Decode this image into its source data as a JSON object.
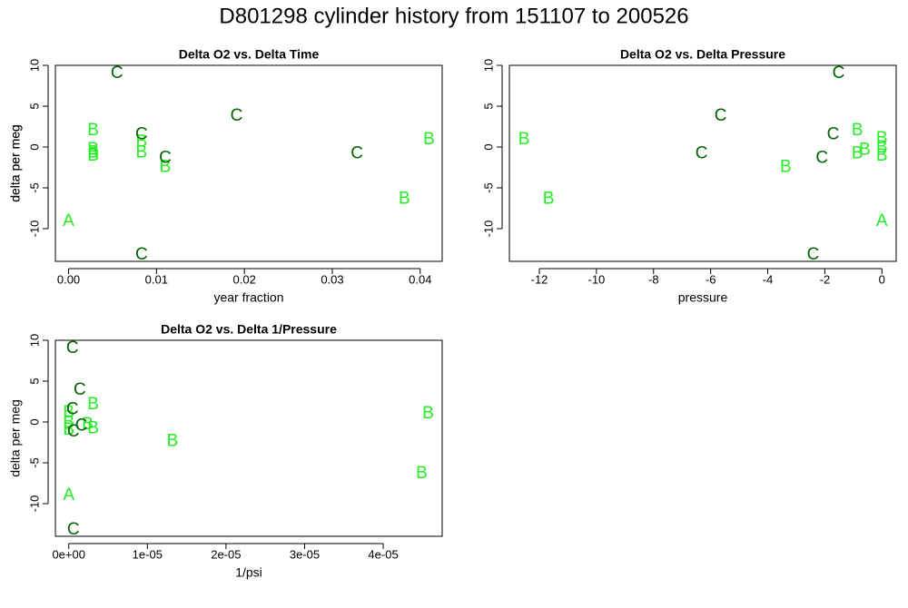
{
  "title": "D801298   cylinder history from  151107  to  200526",
  "chart_data": [
    {
      "type": "scatter",
      "title": "Delta O2 vs. Delta Time",
      "x_label": "year fraction",
      "y_label": "delta per meg",
      "xlim": [
        -0.0015,
        0.0425
      ],
      "ylim": [
        -14,
        10
      ],
      "xticks": [
        {
          "value": 0,
          "label": "0.00"
        },
        {
          "value": 0.01,
          "label": "0.01"
        },
        {
          "value": 0.02,
          "label": "0.02"
        },
        {
          "value": 0.03,
          "label": "0.03"
        },
        {
          "value": 0.04,
          "label": "0.04"
        }
      ],
      "yticks": [
        10,
        5,
        0,
        -5,
        -10
      ],
      "series": [
        {
          "name": "A",
          "color": "#22ee22",
          "x": [
            0
          ],
          "values": [
            -9.0
          ]
        },
        {
          "name": "B",
          "color": "#22ee22",
          "x": [
            0.0028,
            0.0028,
            0.0028,
            0.0028,
            0.0083,
            0.0083,
            0.011,
            0.0382,
            0.041
          ],
          "values": [
            2.1,
            -0.2,
            -0.6,
            -1.0,
            0.7,
            -0.6,
            -2.4,
            -6.3,
            1.0
          ]
        },
        {
          "name": "C",
          "color": "#006400",
          "x": [
            0.0055,
            0.0083,
            0.011,
            0.0191,
            0.0083,
            0.0328
          ],
          "values": [
            9.1,
            1.6,
            -1.3,
            3.9,
            -13.1,
            -0.7
          ]
        }
      ]
    },
    {
      "type": "scatter",
      "title": "Delta O2 vs. Delta Pressure",
      "x_label": "pressure",
      "y_label": "delta per meg",
      "xlim": [
        -13.05,
        0.5
      ],
      "ylim": [
        -14,
        10
      ],
      "xticks": [
        -12,
        -10,
        -8,
        -6,
        -4,
        -2,
        0
      ],
      "yticks": [
        10,
        5,
        0,
        -5,
        -10
      ],
      "series": [
        {
          "name": "A",
          "color": "#22ee22",
          "x": [
            0
          ],
          "values": [
            -9.0
          ]
        },
        {
          "name": "B",
          "color": "#22ee22",
          "x": [
            -12.54,
            -11.68,
            -3.37,
            -0.86,
            -0.86,
            -0.6,
            0,
            0,
            0
          ],
          "values": [
            1.0,
            -6.3,
            -2.4,
            2.1,
            -0.7,
            -0.3,
            1.1,
            0,
            -1.0
          ]
        },
        {
          "name": "C",
          "color": "#006400",
          "x": [
            -1.52,
            -5.65,
            -6.32,
            -2.1,
            -1.71,
            -2.41
          ],
          "values": [
            9.1,
            3.9,
            -0.7,
            -1.3,
            1.6,
            -13.1
          ]
        }
      ]
    },
    {
      "type": "scatter",
      "title": "Delta O2 vs. Delta 1/Pressure",
      "x_label": "1/psi",
      "y_label": "delta per meg",
      "xlim": [
        -1.7e-06,
        4.75e-05
      ],
      "ylim": [
        -14,
        10
      ],
      "xticks": [
        {
          "value": 0,
          "label": "0e+00"
        },
        {
          "value": 1e-05,
          "label": "1e-05"
        },
        {
          "value": 2e-05,
          "label": "2e-05"
        },
        {
          "value": 3e-05,
          "label": "3e-05"
        },
        {
          "value": 4e-05,
          "label": "4e-05"
        }
      ],
      "yticks": [
        10,
        5,
        0,
        -5,
        -10
      ],
      "series": [
        {
          "name": "A",
          "color": "#22ee22",
          "x": [
            0
          ],
          "values": [
            -8.9
          ]
        },
        {
          "name": "B",
          "color": "#22ee22",
          "x": [
            3.1e-06,
            0,
            0,
            0,
            2.4e-06,
            3.1e-06,
            1.32e-05,
            4.57e-05,
            4.49e-05
          ],
          "values": [
            2.2,
            1.2,
            0,
            -0.9,
            -0.2,
            -0.7,
            -2.3,
            1.1,
            -6.2
          ]
        },
        {
          "name": "C",
          "color": "#006400",
          "x": [
            4.6e-07,
            1.4e-06,
            4.6e-07,
            1.6e-06,
            5.8e-07,
            5.8e-07
          ],
          "values": [
            9.1,
            4.0,
            1.6,
            -0.4,
            -1.1,
            -13.1
          ]
        }
      ]
    }
  ]
}
